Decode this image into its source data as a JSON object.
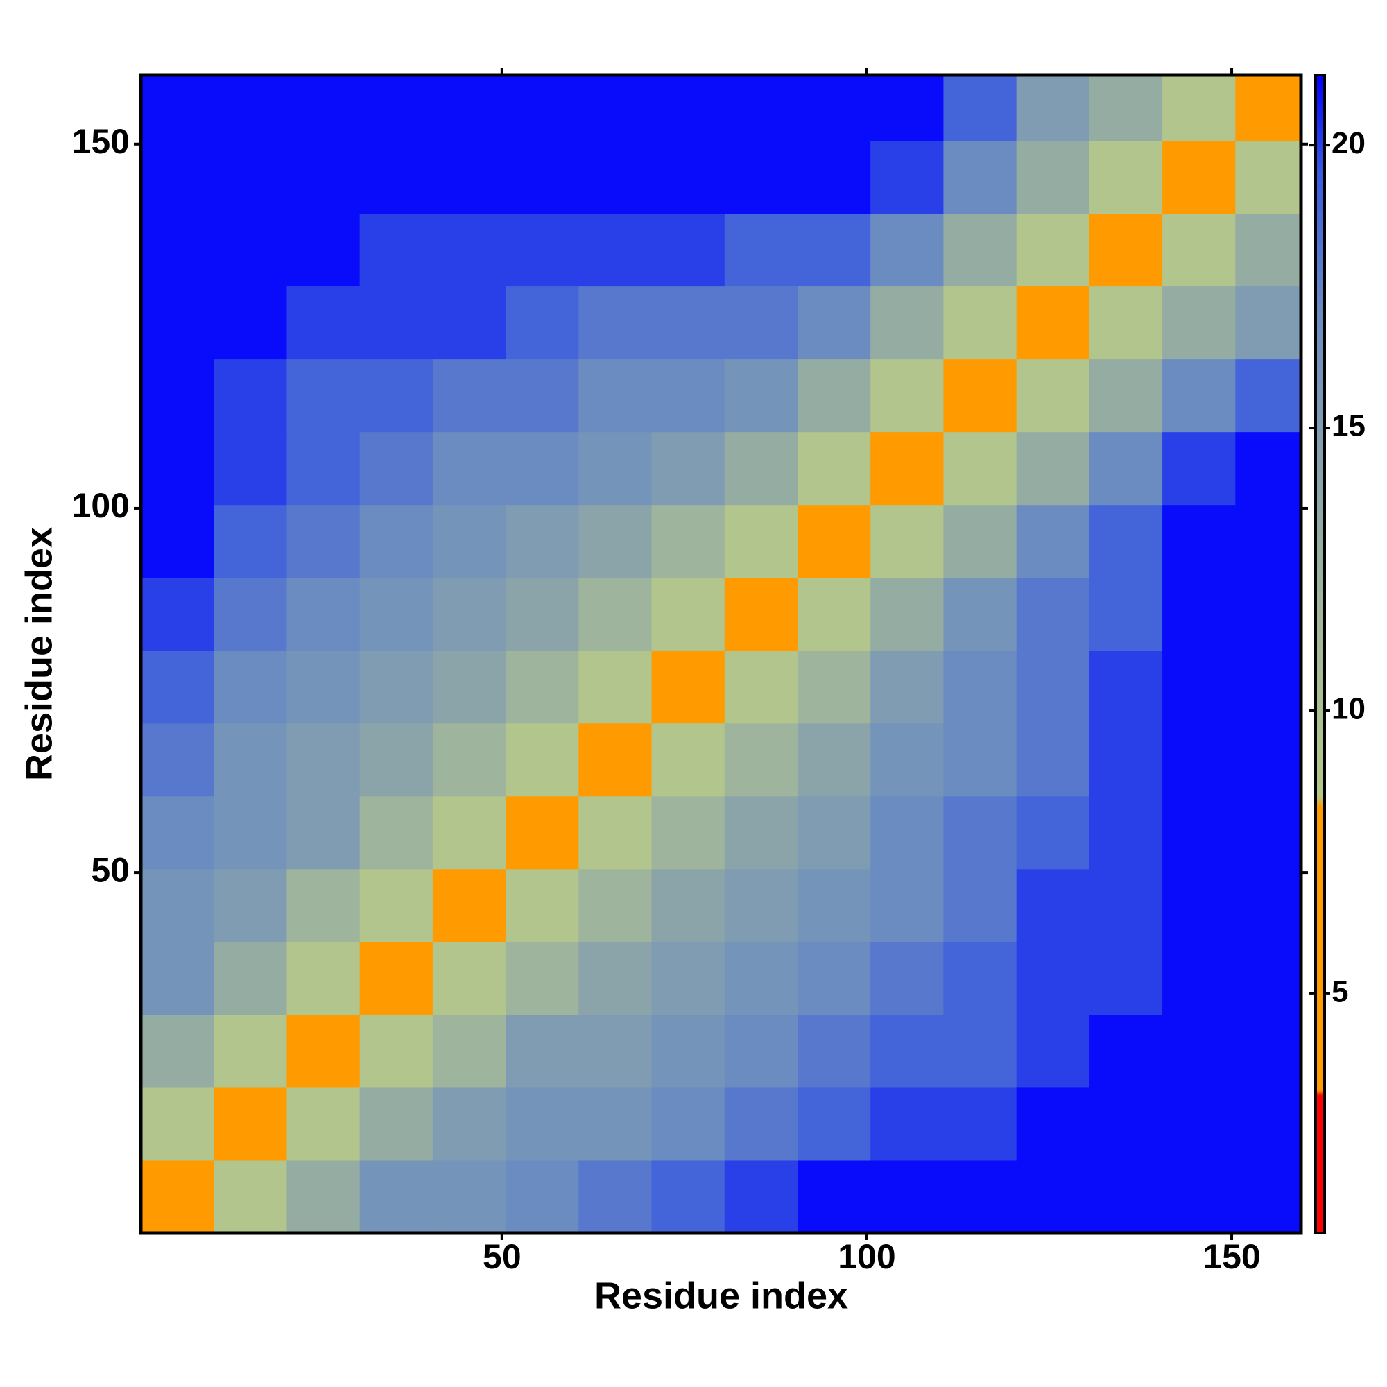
{
  "chart_data": {
    "type": "heatmap",
    "xlabel": "Residue index",
    "ylabel": "Residue index",
    "xbins": [
      0.5,
      10.5,
      20.5,
      30.5,
      40.5,
      50.5,
      60.5,
      70.5,
      80.5,
      90.5,
      100.5,
      110.5,
      120.5,
      130.5,
      140.5,
      150.5,
      159.5
    ],
    "ybins": [
      0.5,
      10.5,
      20.5,
      30.5,
      40.5,
      50.5,
      60.5,
      70.5,
      80.5,
      90.5,
      100.5,
      110.5,
      120.5,
      130.5,
      140.5,
      150.5,
      159.5
    ],
    "z": [
      [
        4,
        9,
        13,
        16,
        16,
        17,
        18,
        19,
        20,
        21,
        21,
        21,
        21,
        21,
        21,
        21
      ],
      [
        9,
        4,
        9,
        13,
        15,
        16,
        16,
        17,
        18,
        19,
        20,
        20,
        21,
        21,
        21,
        21
      ],
      [
        13,
        9,
        4,
        9,
        12,
        15,
        15,
        16,
        17,
        18,
        19,
        19,
        20,
        21,
        21,
        21
      ],
      [
        16,
        13,
        9,
        4,
        9,
        12,
        14,
        15,
        16,
        17,
        18,
        19,
        20,
        20,
        21,
        21
      ],
      [
        16,
        15,
        12,
        9,
        4,
        9,
        12,
        14,
        15,
        16,
        17,
        18,
        20,
        20,
        21,
        21
      ],
      [
        17,
        16,
        15,
        12,
        9,
        4,
        9,
        12,
        14,
        15,
        17,
        18,
        19,
        20,
        21,
        21
      ],
      [
        18,
        16,
        15,
        14,
        12,
        9,
        4,
        9,
        12,
        14,
        16,
        17,
        18,
        20,
        21,
        21
      ],
      [
        19,
        17,
        16,
        15,
        14,
        12,
        9,
        4,
        9,
        12,
        15,
        17,
        18,
        20,
        21,
        21
      ],
      [
        20,
        18,
        17,
        16,
        15,
        14,
        12,
        9,
        4,
        9,
        13,
        16,
        18,
        19,
        21,
        21
      ],
      [
        21,
        19,
        18,
        17,
        16,
        15,
        14,
        12,
        9,
        4,
        9,
        13,
        17,
        19,
        21,
        21
      ],
      [
        21,
        20,
        19,
        18,
        17,
        17,
        16,
        15,
        13,
        9,
        4,
        9,
        13,
        17,
        20,
        21
      ],
      [
        21,
        20,
        19,
        19,
        18,
        18,
        17,
        17,
        16,
        13,
        9,
        4,
        9,
        13,
        17,
        19
      ],
      [
        21,
        21,
        20,
        20,
        20,
        19,
        18,
        18,
        18,
        17,
        13,
        9,
        4,
        9,
        13,
        15
      ],
      [
        21,
        21,
        21,
        20,
        20,
        20,
        20,
        20,
        19,
        19,
        17,
        13,
        9,
        4,
        9,
        13
      ],
      [
        21,
        21,
        21,
        21,
        21,
        21,
        21,
        21,
        21,
        21,
        20,
        17,
        13,
        9,
        4,
        9
      ],
      [
        21,
        21,
        21,
        21,
        21,
        21,
        21,
        21,
        21,
        21,
        21,
        19,
        15,
        13,
        9,
        4
      ]
    ],
    "xlim": [
      0.5,
      159.5
    ],
    "ylim": [
      0.5,
      159.5
    ],
    "xticks": [
      50,
      100,
      150
    ],
    "yticks": [
      50,
      100,
      150
    ],
    "clim": [
      0.77,
      21.24
    ],
    "cticks": [
      5,
      10,
      15,
      20
    ],
    "colorscale": [
      [
        0.77,
        "#ff0000"
      ],
      [
        3.2,
        "#ff0000"
      ],
      [
        3.3,
        "#ff9a00"
      ],
      [
        8.3,
        "#ff9a00"
      ],
      [
        8.5,
        "#b4c88a"
      ],
      [
        12,
        "#9fb49c"
      ],
      [
        17,
        "#6b8cc0"
      ],
      [
        19.5,
        "#3a5ae0"
      ],
      [
        21.24,
        "#0000ff"
      ]
    ]
  }
}
